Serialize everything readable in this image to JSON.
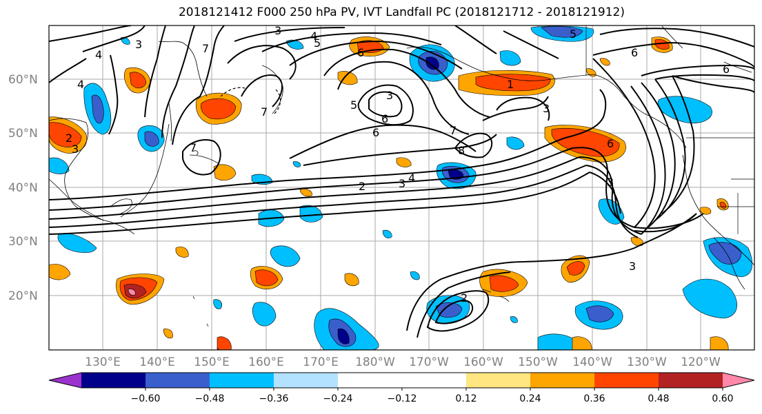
{
  "title": "2018121412 F000 250 hPa PV, IVT Landfall PC (2018121712 - 2018121912)",
  "map": {
    "lat_labels": [
      "60°N",
      "50°N",
      "40°N",
      "30°N",
      "20°N"
    ],
    "lon_labels": [
      "130°E",
      "140°E",
      "150°E",
      "160°E",
      "170°E",
      "180°W",
      "170°W",
      "160°W",
      "150°W",
      "140°W",
      "130°W",
      "120°W"
    ],
    "contour_labels": [
      "4",
      "3",
      "4",
      "5",
      "6",
      "4",
      "3",
      "5",
      "6",
      "6",
      "5",
      "6",
      "6",
      "2",
      "3",
      "7",
      "2",
      "3",
      "4",
      "7",
      "8",
      "3",
      "6",
      "3",
      "2",
      "7",
      "1",
      "7",
      "3",
      "3"
    ]
  },
  "colorbar": {
    "colors": [
      "#9a32cd",
      "#00008b",
      "#3a5fcd",
      "#00bfff",
      "#b2e2ff",
      "#ffffff",
      "#ffffff",
      "#ffe680",
      "#ffa500",
      "#ff4500",
      "#b22222",
      "#ff88aa"
    ],
    "tick_labels": [
      "-0.60",
      "-0.48",
      "-0.36",
      "-0.24",
      "-0.12",
      "0.12",
      "0.24",
      "0.36",
      "0.48",
      "0.60"
    ]
  }
}
